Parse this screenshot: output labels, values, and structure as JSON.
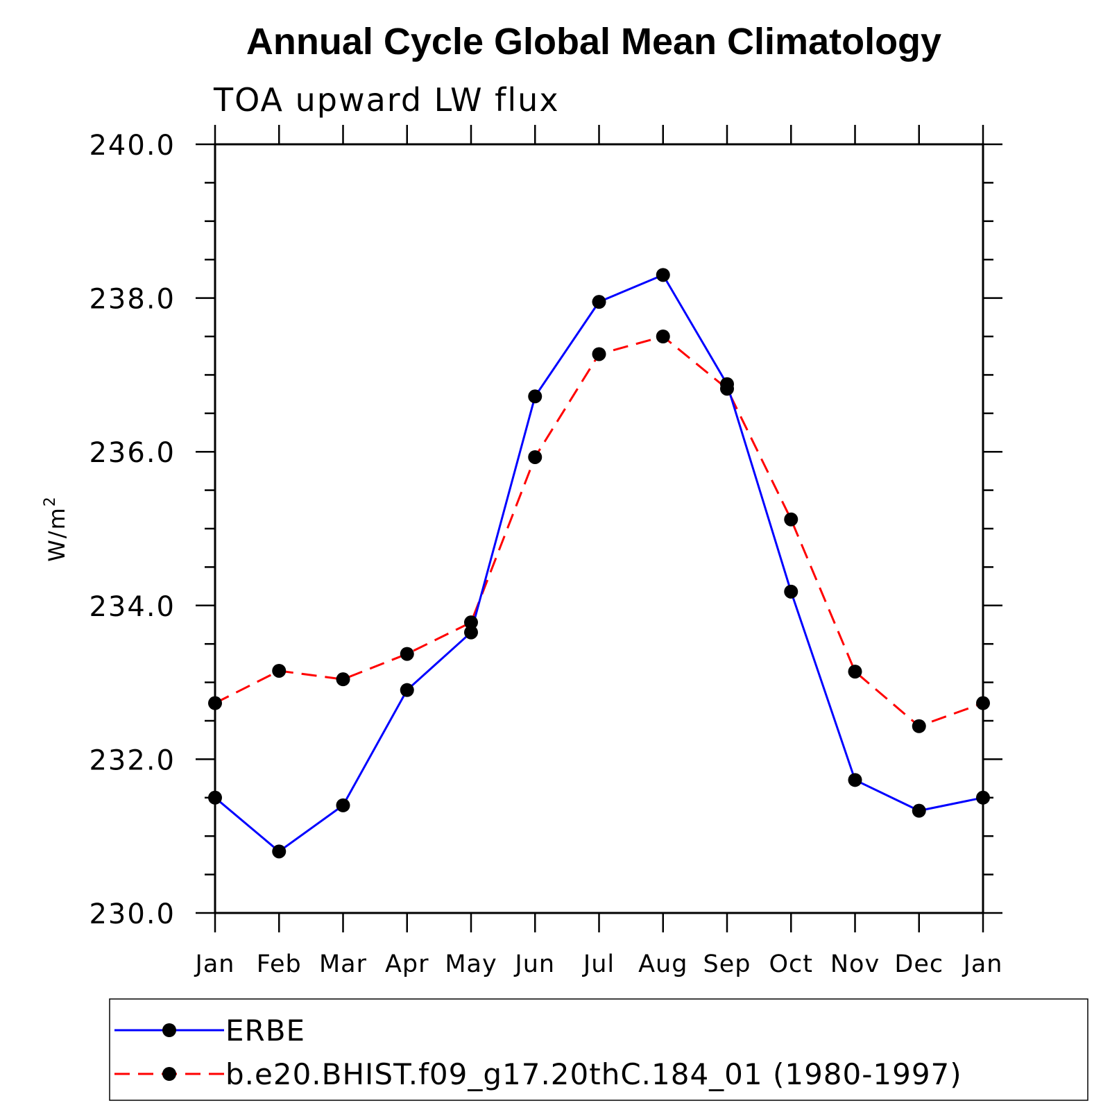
{
  "chart_data": {
    "type": "line",
    "title": "Annual Cycle Global Mean Climatology",
    "subtitle": "TOA upward LW flux",
    "ylabel": "W/m",
    "ylabel_sup": "2",
    "ylim": [
      230.0,
      240.0
    ],
    "ytick_values": [
      230.0,
      232.0,
      234.0,
      236.0,
      238.0,
      240.0
    ],
    "ytick_labels": [
      "230.0",
      "232.0",
      "234.0",
      "236.0",
      "238.0",
      "240.0"
    ],
    "categories": [
      "Jan",
      "Feb",
      "Mar",
      "Apr",
      "May",
      "Jun",
      "Jul",
      "Aug",
      "Sep",
      "Oct",
      "Nov",
      "Dec",
      "Jan"
    ],
    "grid": false,
    "legend_position": "bottom",
    "series": [
      {
        "name": "ERBE",
        "color": "#0000ff",
        "dash": "solid",
        "marker": "circle",
        "values": [
          231.5,
          230.8,
          231.4,
          232.9,
          233.65,
          236.72,
          237.95,
          238.3,
          236.88,
          234.18,
          231.73,
          231.33,
          231.5
        ]
      },
      {
        "name": "b.e20.BHIST.f09_g17.20thC.184_01 (1980-1997)",
        "color": "#ff0000",
        "dash": "dashed",
        "marker": "circle",
        "values": [
          232.73,
          233.15,
          233.04,
          233.37,
          233.78,
          235.93,
          237.27,
          237.5,
          236.82,
          235.12,
          233.14,
          232.43,
          232.73
        ]
      }
    ]
  }
}
